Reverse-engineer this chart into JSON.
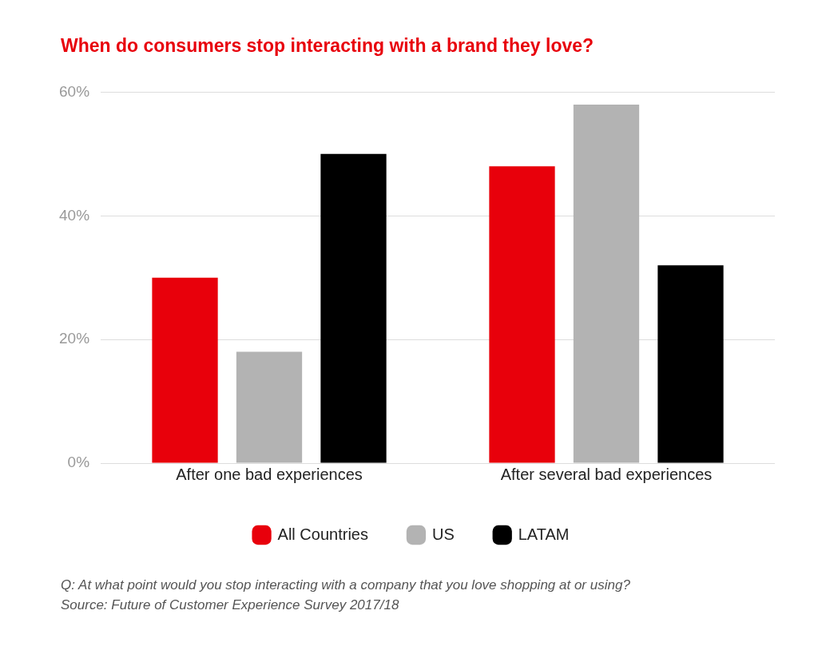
{
  "chart_data": {
    "type": "bar",
    "title": "When do consumers stop interacting with a brand they love?",
    "categories": [
      "After one bad experiences",
      "After several bad experiences"
    ],
    "series": [
      {
        "name": "All Countries",
        "color": "#e8000b",
        "values": [
          30,
          48
        ]
      },
      {
        "name": "US",
        "color": "#b3b3b3",
        "values": [
          18,
          58
        ]
      },
      {
        "name": "LATAM",
        "color": "#000000",
        "values": [
          50,
          32
        ]
      }
    ],
    "ylim": [
      0,
      60
    ],
    "yticks": [
      {
        "value": 0,
        "label": "0%"
      },
      {
        "value": 20,
        "label": "20%"
      },
      {
        "value": 40,
        "label": "40%"
      },
      {
        "value": 60,
        "label": "60%"
      }
    ],
    "grid": "y",
    "legend": "bottom",
    "annotations": [
      "Q: At what point would you stop interacting with a company that you love shopping at or using?",
      "Source: Future of Customer Experience Survey 2017/18"
    ]
  }
}
